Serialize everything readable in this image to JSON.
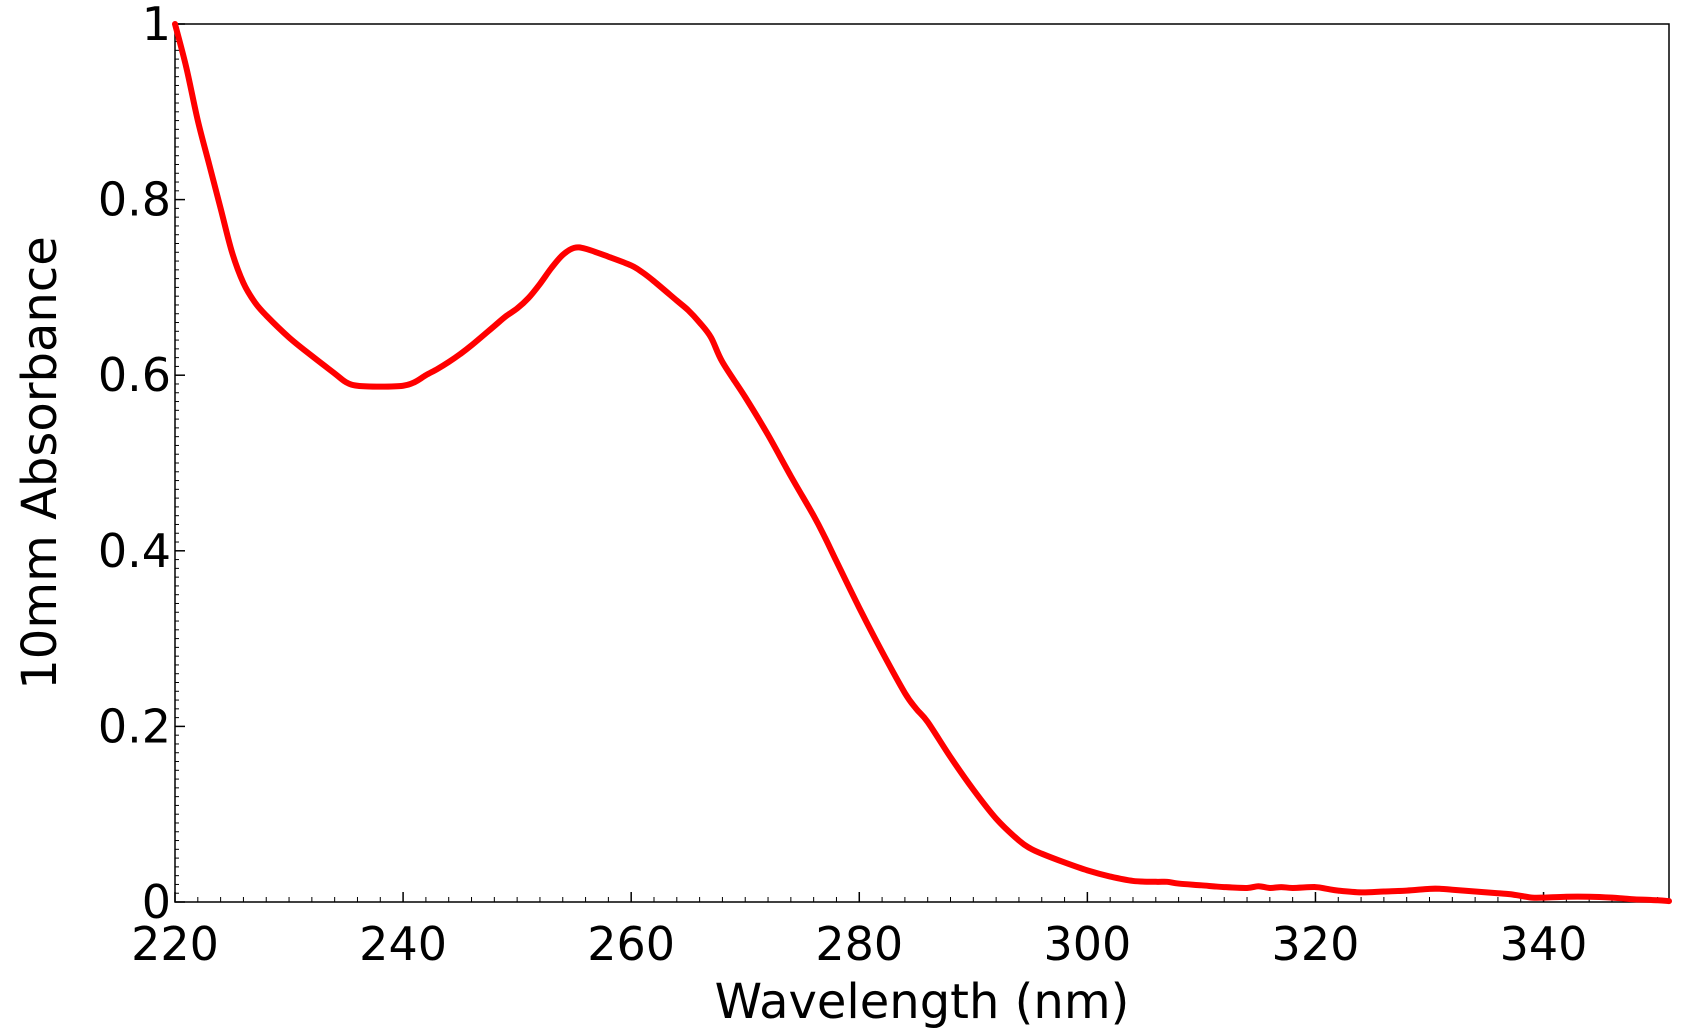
{
  "chart_data": {
    "type": "line",
    "title": "",
    "xlabel": "Wavelength (nm)",
    "ylabel": "10mm Absorbance",
    "xlim": [
      220,
      351
    ],
    "ylim": [
      0,
      1
    ],
    "x_ticks": [
      220,
      240,
      260,
      280,
      300,
      320,
      340
    ],
    "x_tick_labels": [
      "220",
      "240",
      "260",
      "280",
      "300",
      "320",
      "340"
    ],
    "y_ticks": [
      0,
      0.2,
      0.4,
      0.6,
      0.8,
      1
    ],
    "y_tick_labels": [
      "0",
      "0.2",
      "0.4",
      "0.6",
      "0.8",
      "1"
    ],
    "grid": false,
    "legend": "none",
    "series": [
      {
        "color": "#ff0000",
        "x": [
          220,
          221,
          222,
          223,
          224,
          225,
          226,
          227,
          228,
          230,
          232,
          234,
          235,
          236,
          238,
          240,
          241,
          242,
          243,
          244,
          245,
          246,
          248,
          249,
          250,
          251,
          252,
          253,
          254,
          255,
          256,
          258,
          260,
          261,
          262,
          264,
          265,
          266,
          267,
          268,
          270,
          272,
          274,
          276,
          277,
          278,
          280,
          282,
          284,
          285,
          286,
          288,
          290,
          292,
          294,
          295,
          296,
          298,
          300,
          302,
          304,
          306,
          307,
          308,
          310,
          312,
          314,
          315,
          316,
          317,
          318,
          320,
          321,
          322,
          324,
          326,
          328,
          330,
          331,
          332,
          334,
          336,
          337,
          338,
          339,
          340,
          342,
          344,
          346,
          347,
          348,
          350,
          351
        ],
        "y": [
          1.0,
          0.95,
          0.89,
          0.84,
          0.79,
          0.74,
          0.705,
          0.683,
          0.668,
          0.643,
          0.622,
          0.602,
          0.592,
          0.588,
          0.587,
          0.588,
          0.592,
          0.6,
          0.607,
          0.615,
          0.624,
          0.634,
          0.656,
          0.667,
          0.676,
          0.688,
          0.704,
          0.722,
          0.737,
          0.745,
          0.744,
          0.735,
          0.725,
          0.717,
          0.707,
          0.685,
          0.674,
          0.66,
          0.643,
          0.615,
          0.575,
          0.532,
          0.485,
          0.44,
          0.415,
          0.388,
          0.335,
          0.285,
          0.238,
          0.22,
          0.205,
          0.165,
          0.128,
          0.095,
          0.07,
          0.061,
          0.055,
          0.045,
          0.036,
          0.029,
          0.024,
          0.023,
          0.023,
          0.021,
          0.019,
          0.017,
          0.016,
          0.018,
          0.016,
          0.017,
          0.016,
          0.017,
          0.015,
          0.013,
          0.011,
          0.012,
          0.013,
          0.015,
          0.015,
          0.014,
          0.012,
          0.01,
          0.009,
          0.007,
          0.005,
          0.005,
          0.006,
          0.006,
          0.005,
          0.004,
          0.003,
          0.002,
          0.001
        ]
      }
    ]
  }
}
